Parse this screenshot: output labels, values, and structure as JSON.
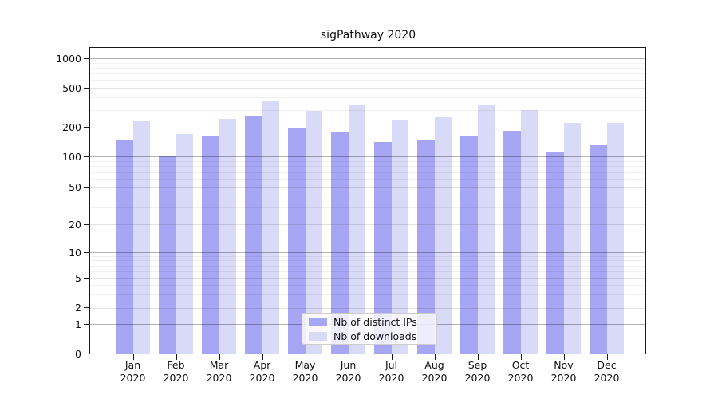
{
  "chart_data": {
    "type": "bar",
    "title": "sigPathway 2020",
    "year": "2020",
    "months": [
      "Jan",
      "Feb",
      "Mar",
      "Apr",
      "May",
      "Jun",
      "Jul",
      "Aug",
      "Sep",
      "Oct",
      "Nov",
      "Dec"
    ],
    "categories": [
      "Jan 2020",
      "Feb 2020",
      "Mar 2020",
      "Apr 2020",
      "May 2020",
      "Jun 2020",
      "Jul 2020",
      "Aug 2020",
      "Sep 2020",
      "Oct 2020",
      "Nov 2020",
      "Dec 2020"
    ],
    "series": [
      {
        "name": "Nb of distinct IPs",
        "color": "#a6a6f4",
        "values": [
          145,
          100,
          160,
          260,
          200,
          180,
          140,
          150,
          165,
          185,
          112,
          130
        ]
      },
      {
        "name": "Nb of downloads",
        "color": "#d9d9f8",
        "values": [
          230,
          170,
          245,
          375,
          295,
          330,
          235,
          255,
          340,
          300,
          220,
          220
        ]
      }
    ],
    "y_axis": {
      "ticks": [
        0,
        1,
        2,
        5,
        10,
        20,
        50,
        100,
        200,
        500,
        1000
      ],
      "scale": "log-like",
      "range": [
        0,
        1270
      ]
    },
    "x_axis": {
      "label_lines": 2
    },
    "grid": "major-and-minor-horizontal",
    "legend": {
      "position": "bottom-center",
      "items": [
        "Nb of distinct IPs",
        "Nb of downloads"
      ]
    }
  }
}
